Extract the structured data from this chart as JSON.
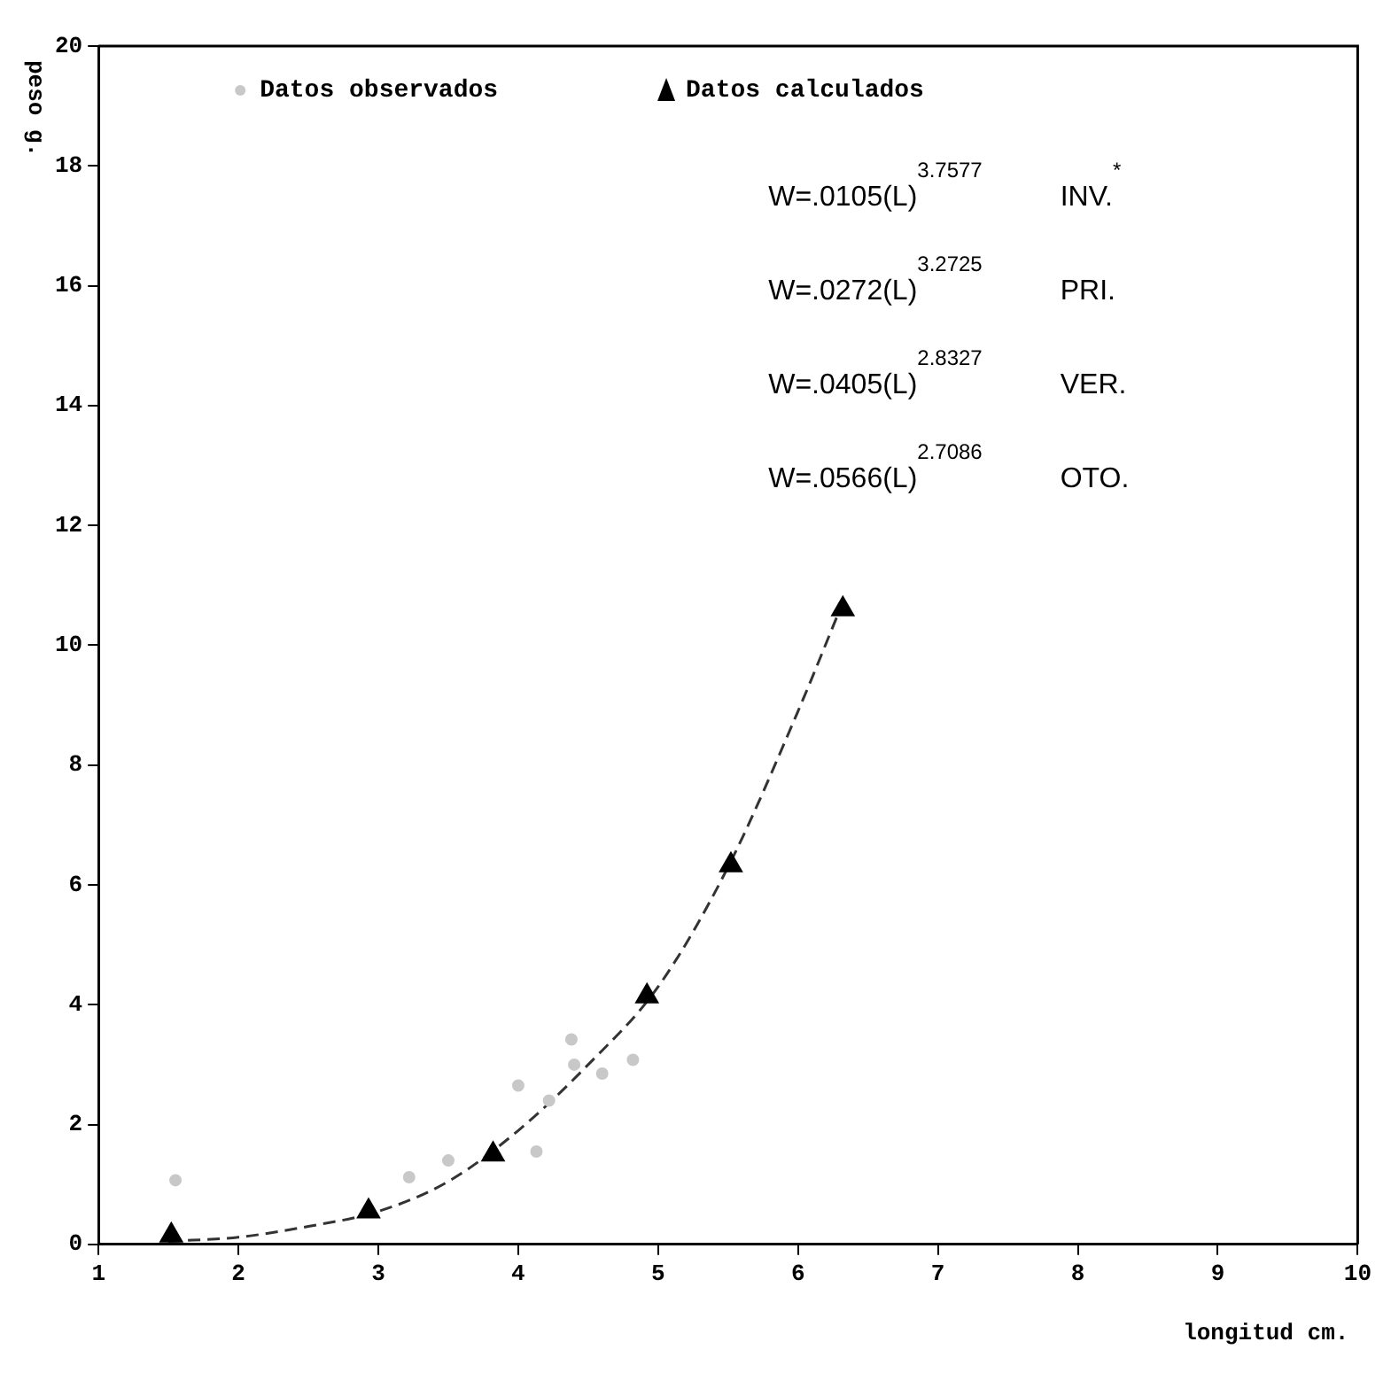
{
  "chart_data": {
    "type": "scatter",
    "xlabel": "longitud cm.",
    "ylabel": "peso g.",
    "xlim": [
      1,
      10
    ],
    "xticks": [
      1,
      2,
      3,
      4,
      5,
      6,
      7,
      8,
      9,
      10
    ],
    "ylim": [
      0,
      20
    ],
    "yticks": [
      0,
      2,
      4,
      6,
      8,
      10,
      12,
      14,
      16,
      18,
      20
    ],
    "grid": false,
    "legend": "top left",
    "series": [
      {
        "name": "Datos observados",
        "marker": "circle",
        "color": "#c8c8c8",
        "x": [
          1.55,
          3.22,
          3.5,
          4.0,
          4.13,
          4.22,
          4.38,
          4.4,
          4.6,
          4.82
        ],
        "values": [
          1.07,
          1.12,
          1.4,
          2.65,
          1.55,
          2.4,
          3.42,
          3.0,
          2.85,
          3.08
        ]
      },
      {
        "name": "Datos calculados",
        "marker": "triangle",
        "color": "#000000",
        "x": [
          1.52,
          2.93,
          3.82,
          4.92,
          5.52,
          6.32
        ],
        "values": [
          0.15,
          0.55,
          1.5,
          4.14,
          6.33,
          10.6
        ]
      },
      {
        "type": "line",
        "marker": "none",
        "line_style": "dashed",
        "color": "#333333",
        "x": [
          1.5,
          2,
          2.5,
          3,
          3.5,
          4,
          4.5,
          5,
          5.5,
          6,
          6.3
        ],
        "values": [
          0.05,
          0.12,
          0.3,
          0.55,
          1.05,
          1.9,
          3.0,
          4.3,
          6.3,
          8.9,
          10.6
        ]
      }
    ],
    "annotations": [
      "W=.0105(L)$^{3.7577}$ INV.$^{*}$",
      "W=.0272(L)$^{3.2725}$ PRI.",
      "W=.0405(L)$^{2.8327}$ VER.",
      "W=.0566(L)$^{2.7086}$ OTO."
    ]
  }
}
